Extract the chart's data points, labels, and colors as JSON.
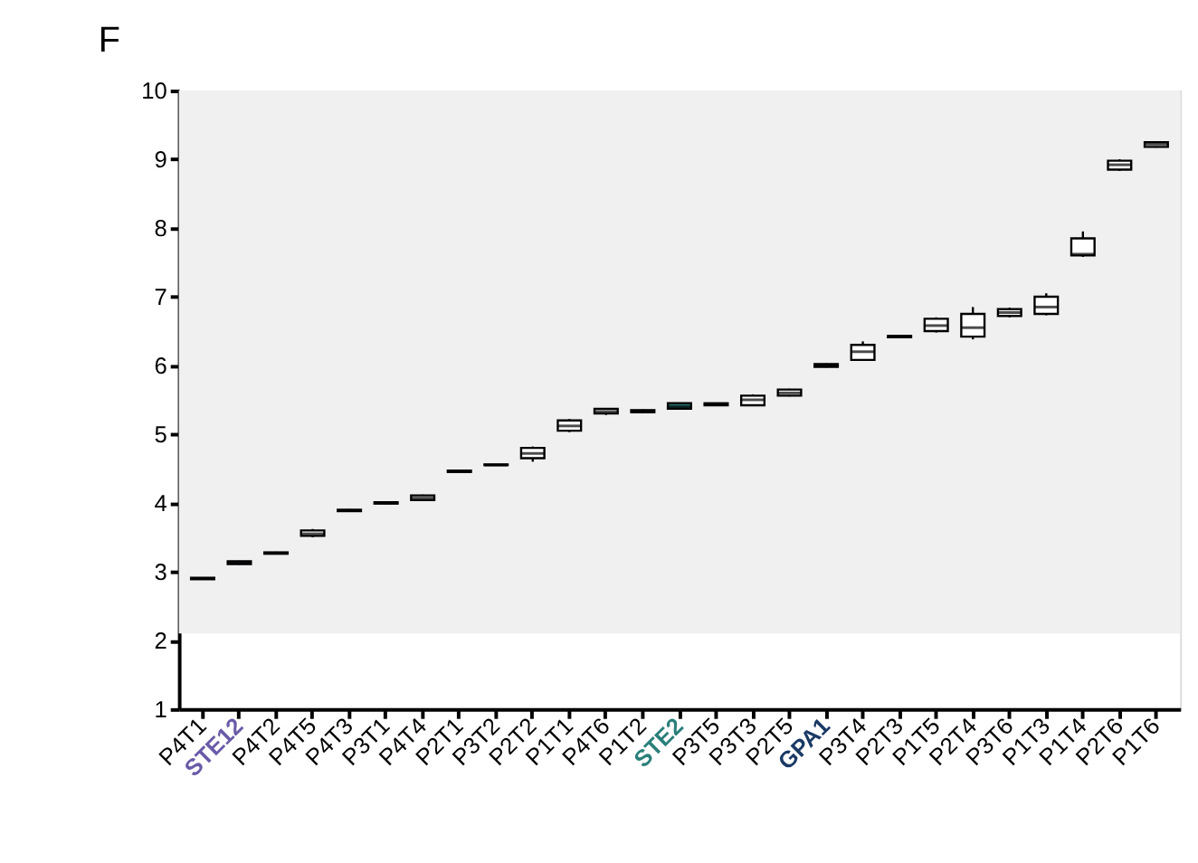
{
  "chart_data": {
    "type": "box",
    "title": "F",
    "categories": [
      "P4T1",
      "STE12",
      "P4T2",
      "P4T5",
      "P4T3",
      "P3T1",
      "P4T4",
      "P2T1",
      "P3T2",
      "P2T2",
      "P1T1",
      "P4T6",
      "P1T2",
      "STE2",
      "P3T5",
      "P3T3",
      "P2T5",
      "GPA1",
      "P3T4",
      "P2T3",
      "P1T5",
      "P2T4",
      "P3T6",
      "P1T3",
      "P1T4",
      "P2T6",
      "P1T6"
    ],
    "boxes": [
      {
        "low": 2.88,
        "q1": 2.89,
        "median": 2.9,
        "q3": 2.91,
        "high": 2.92
      },
      {
        "low": 3.1,
        "q1": 3.11,
        "median": 3.13,
        "q3": 3.15,
        "high": 3.16
      },
      {
        "low": 3.25,
        "q1": 3.26,
        "median": 3.27,
        "q3": 3.28,
        "high": 3.29
      },
      {
        "low": 3.5,
        "q1": 3.52,
        "median": 3.55,
        "q3": 3.6,
        "high": 3.62
      },
      {
        "low": 3.88,
        "q1": 3.88,
        "median": 3.89,
        "q3": 3.9,
        "high": 3.91
      },
      {
        "low": 3.98,
        "q1": 3.99,
        "median": 4.0,
        "q3": 4.01,
        "high": 4.02
      },
      {
        "low": 4.03,
        "q1": 4.04,
        "median": 4.07,
        "q3": 4.11,
        "high": 4.12
      },
      {
        "low": 4.45,
        "q1": 4.45,
        "median": 4.46,
        "q3": 4.47,
        "high": 4.48
      },
      {
        "low": 4.55,
        "q1": 4.55,
        "median": 4.55,
        "q3": 4.56,
        "high": 4.56
      },
      {
        "low": 4.6,
        "q1": 4.65,
        "median": 4.72,
        "q3": 4.8,
        "high": 4.82
      },
      {
        "low": 5.03,
        "q1": 5.05,
        "median": 5.12,
        "q3": 5.2,
        "high": 5.22
      },
      {
        "low": 5.28,
        "q1": 5.3,
        "median": 5.33,
        "q3": 5.37,
        "high": 5.38
      },
      {
        "low": 5.31,
        "q1": 5.32,
        "median": 5.33,
        "q3": 5.35,
        "high": 5.36
      },
      {
        "low": 5.36,
        "q1": 5.37,
        "median": 5.4,
        "q3": 5.45,
        "high": 5.46
      },
      {
        "low": 5.42,
        "q1": 5.42,
        "median": 5.43,
        "q3": 5.45,
        "high": 5.46
      },
      {
        "low": 5.41,
        "q1": 5.42,
        "median": 5.5,
        "q3": 5.56,
        "high": 5.58
      },
      {
        "low": 5.55,
        "q1": 5.56,
        "median": 5.6,
        "q3": 5.65,
        "high": 5.66
      },
      {
        "low": 5.97,
        "q1": 5.98,
        "median": 6.0,
        "q3": 6.02,
        "high": 6.03
      },
      {
        "low": 6.07,
        "q1": 6.08,
        "median": 6.2,
        "q3": 6.3,
        "high": 6.35
      },
      {
        "low": 6.41,
        "q1": 6.41,
        "median": 6.42,
        "q3": 6.43,
        "high": 6.43
      },
      {
        "low": 6.48,
        "q1": 6.5,
        "median": 6.58,
        "q3": 6.68,
        "high": 6.7
      },
      {
        "low": 6.38,
        "q1": 6.42,
        "median": 6.55,
        "q3": 6.75,
        "high": 6.85
      },
      {
        "low": 6.7,
        "q1": 6.72,
        "median": 6.77,
        "q3": 6.82,
        "high": 6.84
      },
      {
        "low": 6.73,
        "q1": 6.75,
        "median": 6.85,
        "q3": 7.0,
        "high": 7.05
      },
      {
        "low": 7.58,
        "q1": 7.6,
        "median": 7.62,
        "q3": 7.85,
        "high": 7.95
      },
      {
        "low": 8.83,
        "q1": 8.85,
        "median": 8.92,
        "q3": 8.98,
        "high": 9.0
      },
      {
        "low": 9.17,
        "q1": 9.18,
        "median": 9.22,
        "q3": 9.25,
        "high": 9.26
      }
    ],
    "colors": [
      "#ffffff",
      "#6a5aa8",
      "#ffffff",
      "#ffffff",
      "#ffffff",
      "#ffffff",
      "#ffffff",
      "#ffffff",
      "#ffffff",
      "#ffffff",
      "#ffffff",
      "#ffffff",
      "#ffffff",
      "#2a7f7a",
      "#ffffff",
      "#ffffff",
      "#ffffff",
      "#1b3a66",
      "#ffffff",
      "#ffffff",
      "#ffffff",
      "#ffffff",
      "#ffffff",
      "#ffffff",
      "#ffffff",
      "#ffffff",
      "#ffffff"
    ],
    "ylim": [
      1,
      10
    ],
    "yticks": [
      1,
      2,
      3,
      4,
      5,
      6,
      7,
      8,
      9,
      10
    ],
    "bands": [
      {
        "axis": "y",
        "from": 2.1,
        "to": 10,
        "color": "#f0f0f0"
      }
    ],
    "grid": false
  }
}
